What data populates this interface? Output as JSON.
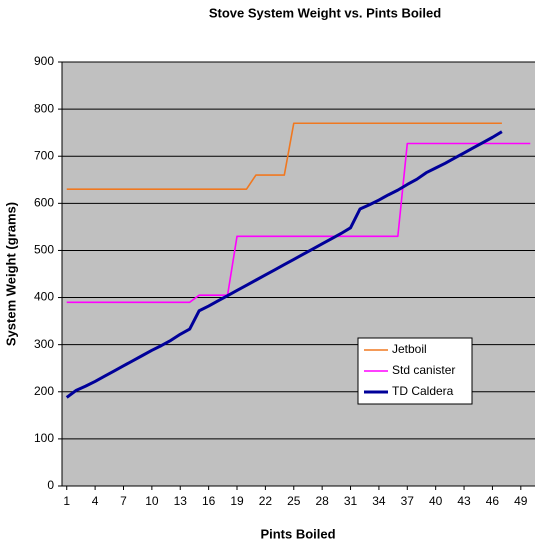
{
  "chart_data": {
    "type": "line",
    "title": "Stove System Weight vs. Pints Boiled",
    "x_label": "Pints Boiled",
    "y_label": "System Weight (grams)",
    "x": [
      1,
      2,
      3,
      4,
      5,
      6,
      7,
      8,
      9,
      10,
      11,
      12,
      13,
      14,
      15,
      16,
      17,
      18,
      19,
      20,
      21,
      22,
      23,
      24,
      25,
      26,
      27,
      28,
      29,
      30,
      31,
      32,
      33,
      34,
      35,
      36,
      37,
      38,
      39,
      40,
      41,
      42,
      43,
      44,
      45,
      46,
      47,
      48,
      49,
      50
    ],
    "xlim": [
      0.5,
      50.5
    ],
    "xticks": [
      1,
      4,
      7,
      10,
      13,
      16,
      19,
      22,
      25,
      28,
      31,
      34,
      37,
      40,
      43,
      46,
      49
    ],
    "ylim": [
      0,
      900
    ],
    "yticks": [
      0,
      100,
      200,
      300,
      400,
      500,
      600,
      700,
      800,
      900
    ],
    "grid": true,
    "legend": "lower right",
    "series": [
      {
        "name": "Jetboil",
        "color": "#f07820",
        "values": [
          630,
          630,
          630,
          630,
          630,
          630,
          630,
          630,
          630,
          630,
          630,
          630,
          630,
          630,
          630,
          630,
          630,
          630,
          630,
          630,
          660,
          660,
          660,
          660,
          770,
          770,
          770,
          770,
          770,
          770,
          770,
          770,
          770,
          770,
          770,
          770,
          770,
          770,
          770,
          770,
          770,
          770,
          770,
          770,
          770,
          770,
          770,
          null,
          null,
          null
        ]
      },
      {
        "name": "Std canister",
        "color": "#ff00ff",
        "values": [
          390,
          390,
          390,
          390,
          390,
          390,
          390,
          390,
          390,
          390,
          390,
          390,
          390,
          390,
          405,
          405,
          405,
          405,
          530,
          530,
          530,
          530,
          530,
          530,
          530,
          530,
          530,
          530,
          530,
          530,
          530,
          530,
          530,
          530,
          530,
          530,
          727,
          727,
          727,
          727,
          727,
          727,
          727,
          727,
          727,
          727,
          727,
          727,
          727,
          727
        ]
      },
      {
        "name": "TD Caldera",
        "color": "#000099",
        "values": [
          188,
          203,
          212,
          222,
          233,
          244,
          255,
          266,
          277,
          288,
          298,
          309,
          322,
          333,
          372,
          382,
          393,
          404,
          415,
          426,
          437,
          448,
          459,
          470,
          481,
          492,
          503,
          514,
          525,
          536,
          548,
          588,
          597,
          607,
          618,
          628,
          640,
          651,
          665,
          675,
          685,
          696,
          707,
          718,
          729,
          740,
          752,
          null,
          null,
          null
        ]
      }
    ]
  }
}
